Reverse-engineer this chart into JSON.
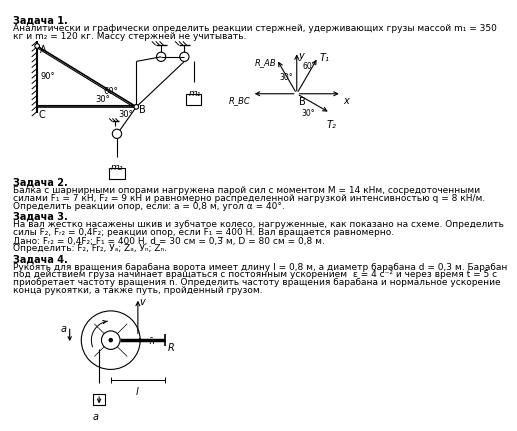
{
  "bg_color": "#ffffff",
  "text_color": "#000000",
  "task1_title": "Задача 1.",
  "task1_line1": "Аналитически и графически определить реакции стержней, удерживающих грузы массой m₁ = 350",
  "task1_line2": "кг и m₂ = 120 кг. Массу стержней не учитывать.",
  "task2_title": "Задача 2.",
  "task2_line1": "Балка с шарнирными опорами нагружена парой сил с моментом M = 14 кНм, сосредоточенными",
  "task2_line2": "силами F₁ = 7 кН, F₂ = 9 кН и равномерно распределенной нагрузкой интенсивностью q = 8 кН/м.",
  "task2_line3": "Определить реакции опор, если: a = 0,8 м, угол α = 40°.",
  "task3_title": "Задача 3.",
  "task3_line1": "На вал жестко насажены шкив и зубчатое колесо, нагруженные, как показано на схеме. Определить",
  "task3_line2": "силы F₂, Fᵣ₂ = 0,4F₂; реакции опор, если F₁ = 400 Н. Вал вращается равномерно.",
  "task3_line3": "Дано: Fᵣ₂ = 0,4F₂; F₁ = 400 Н, d = 30 см = 0,3̅ м, D = 80 см = 0,8 м.",
  "task3_line4": "Определить: F₂, Fr₂, Уₐ; Zₐ, Уₙ; Zₙ.",
  "task4_title": "Задача 4.",
  "task4_line1": "Рукоять для вращения барабана ворота имеет длину l = 0,8 м, а диаметр барабана d = 0,3 м. Барабан",
  "task4_line2": "под действием груза начинает вращаться с постоянным ускорением  ε = 4 с⁻² и через время t = 5 с",
  "task4_line3": "приобретает частоту вращения n. Определить частоту вращения барабана и нормальное ускорение",
  "task4_line4": "конца рукоятки, а также путь, пройденный грузом."
}
